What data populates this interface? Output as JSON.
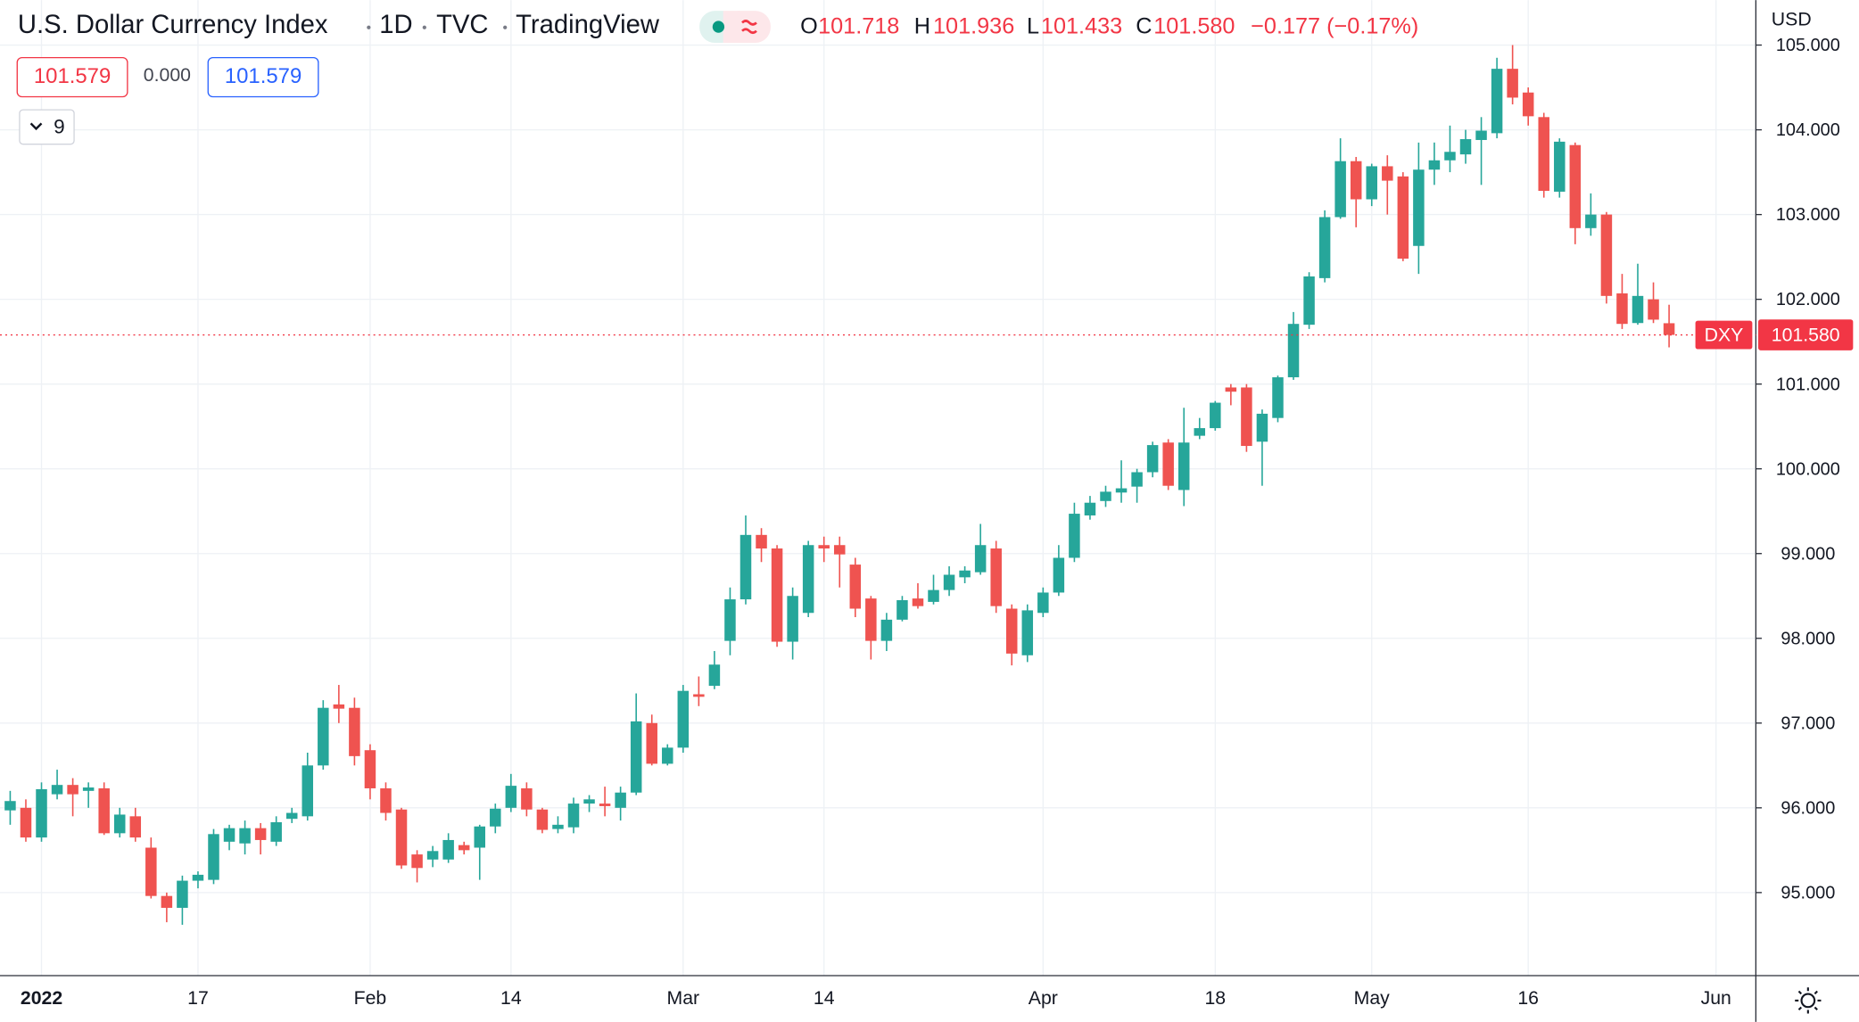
{
  "header": {
    "title": "U.S. Dollar Currency Index",
    "interval": "1D",
    "exchange": "TVC",
    "source": "TradingView",
    "ohlc": [
      {
        "key": "O",
        "value": "101.718"
      },
      {
        "key": "H",
        "value": "101.936"
      },
      {
        "key": "L",
        "value": "101.433"
      },
      {
        "key": "C",
        "value": "101.580"
      }
    ],
    "change": "−0.177 (−0.17%)",
    "indicator_values": [
      "101.579",
      "0.000",
      "101.579"
    ],
    "collapse_count": "9",
    "currency": "USD"
  },
  "chart_data": {
    "type": "candlestick",
    "symbol": "DXY",
    "up_color": "#26a69a",
    "down_color": "#ef5350",
    "grid": true,
    "last_price": 101.58,
    "last_price_label": "101.580",
    "ylim": [
      94.02,
      105.53
    ],
    "yticks": [
      {
        "value": 95,
        "label": "95.000"
      },
      {
        "value": 96,
        "label": "96.000"
      },
      {
        "value": 97,
        "label": "97.000"
      },
      {
        "value": 98,
        "label": "98.000"
      },
      {
        "value": 99,
        "label": "99.000"
      },
      {
        "value": 100,
        "label": "100.000"
      },
      {
        "value": 101,
        "label": "101.000"
      },
      {
        "value": 102,
        "label": "102.000"
      },
      {
        "value": 103,
        "label": "103.000"
      },
      {
        "value": 104,
        "label": "104.000"
      },
      {
        "value": 105,
        "label": "105.000"
      }
    ],
    "categories": [
      null,
      null,
      "2022",
      null,
      null,
      null,
      null,
      null,
      null,
      null,
      null,
      null,
      "17",
      null,
      null,
      null,
      null,
      null,
      null,
      null,
      null,
      null,
      null,
      "Feb",
      null,
      null,
      null,
      null,
      null,
      null,
      null,
      null,
      "14",
      null,
      null,
      null,
      null,
      null,
      null,
      null,
      null,
      null,
      null,
      "Mar",
      null,
      null,
      null,
      null,
      null,
      null,
      null,
      null,
      "14",
      null,
      null,
      null,
      null,
      null,
      null,
      null,
      null,
      null,
      null,
      null,
      null,
      null,
      "Apr",
      null,
      null,
      null,
      null,
      null,
      null,
      null,
      null,
      null,
      null,
      "18",
      null,
      null,
      null,
      null,
      null,
      null,
      null,
      null,
      null,
      "May",
      null,
      null,
      null,
      null,
      null,
      null,
      null,
      null,
      null,
      "16",
      null,
      null,
      null,
      null,
      null,
      null,
      null,
      null,
      null,
      null,
      null,
      "Jun"
    ],
    "open": [
      95.97,
      96.0,
      95.65,
      96.16,
      96.27,
      96.2,
      96.23,
      95.7,
      95.9,
      95.53,
      94.96,
      94.82,
      95.14,
      95.15,
      95.6,
      95.58,
      95.76,
      95.6,
      95.87,
      95.9,
      96.5,
      97.22,
      97.18,
      96.68,
      96.23,
      95.98,
      95.45,
      95.39,
      95.39,
      95.56,
      95.53,
      95.78,
      96.0,
      96.23,
      95.98,
      95.75,
      95.77,
      96.05,
      96.05,
      96.0,
      96.18,
      97.0,
      96.52,
      96.71,
      97.34,
      97.44,
      97.97,
      98.46,
      99.22,
      99.06,
      97.96,
      98.3,
      99.1,
      99.1,
      98.87,
      98.47,
      97.97,
      98.22,
      98.47,
      98.43,
      98.57,
      98.72,
      98.78,
      99.06,
      98.35,
      97.8,
      98.3,
      98.54,
      98.95,
      99.45,
      99.62,
      99.72,
      99.79,
      99.96,
      100.31,
      99.75,
      100.39,
      100.48,
      100.96,
      100.96,
      100.32,
      100.6,
      101.08,
      101.7,
      102.25,
      102.97,
      103.63,
      103.18,
      103.57,
      103.45,
      102.63,
      103.53,
      103.64,
      103.71,
      103.88,
      103.96,
      104.72,
      104.44,
      104.15,
      103.27,
      103.82,
      102.84,
      103.0,
      102.07,
      101.72,
      102.0,
      101.718,
      null,
      null,
      null
    ],
    "high": [
      96.2,
      96.1,
      96.3,
      96.45,
      96.35,
      96.3,
      96.3,
      96.0,
      96.0,
      95.65,
      95.0,
      95.2,
      95.25,
      95.75,
      95.8,
      95.85,
      95.82,
      95.9,
      96.0,
      96.65,
      97.27,
      97.45,
      97.3,
      96.75,
      96.3,
      96.0,
      95.5,
      95.55,
      95.7,
      95.6,
      95.8,
      96.05,
      96.4,
      96.3,
      96.0,
      95.9,
      96.12,
      96.15,
      96.25,
      96.25,
      97.35,
      97.1,
      96.75,
      97.45,
      97.55,
      97.85,
      98.6,
      99.45,
      99.3,
      99.1,
      98.6,
      99.15,
      99.2,
      99.2,
      98.95,
      98.5,
      98.3,
      98.5,
      98.65,
      98.75,
      98.85,
      98.85,
      99.35,
      99.15,
      98.4,
      98.4,
      98.6,
      99.1,
      99.6,
      99.68,
      99.8,
      100.1,
      100.0,
      100.32,
      100.35,
      100.72,
      100.6,
      100.8,
      101.0,
      101.0,
      100.7,
      101.1,
      101.85,
      102.32,
      103.05,
      103.9,
      103.68,
      103.6,
      103.7,
      103.5,
      103.85,
      103.85,
      104.05,
      104.0,
      104.15,
      104.85,
      105.0,
      104.5,
      104.2,
      103.9,
      103.85,
      103.25,
      103.03,
      102.3,
      102.42,
      102.2,
      101.936,
      null,
      null,
      null
    ],
    "low": [
      95.8,
      95.6,
      95.6,
      96.1,
      95.9,
      96.0,
      95.68,
      95.65,
      95.6,
      94.93,
      94.65,
      94.62,
      95.05,
      95.1,
      95.5,
      95.45,
      95.45,
      95.55,
      95.82,
      95.85,
      96.45,
      97.0,
      96.5,
      96.1,
      95.85,
      95.28,
      95.12,
      95.3,
      95.35,
      95.45,
      95.15,
      95.7,
      95.95,
      95.9,
      95.7,
      95.7,
      95.7,
      95.95,
      95.9,
      95.85,
      96.15,
      96.5,
      96.5,
      96.65,
      97.2,
      97.4,
      97.8,
      98.4,
      98.9,
      97.9,
      97.75,
      98.25,
      98.9,
      98.6,
      98.25,
      97.75,
      97.85,
      98.2,
      98.35,
      98.4,
      98.5,
      98.65,
      98.75,
      98.3,
      97.68,
      97.72,
      98.25,
      98.5,
      98.9,
      99.4,
      99.55,
      99.6,
      99.6,
      99.9,
      99.75,
      99.56,
      100.35,
      100.45,
      100.75,
      100.2,
      99.8,
      100.55,
      101.05,
      101.65,
      102.2,
      102.95,
      102.85,
      103.1,
      103.0,
      102.45,
      102.3,
      103.35,
      103.5,
      103.6,
      103.35,
      103.9,
      104.3,
      104.05,
      103.2,
      103.2,
      102.65,
      102.75,
      101.95,
      101.65,
      101.7,
      101.72,
      101.433,
      null,
      null,
      null
    ],
    "close": [
      96.08,
      95.65,
      96.22,
      96.27,
      96.16,
      96.24,
      95.7,
      95.92,
      95.65,
      94.96,
      94.82,
      95.14,
      95.21,
      95.69,
      95.76,
      95.76,
      95.62,
      95.83,
      95.94,
      96.5,
      97.18,
      97.17,
      96.61,
      96.23,
      95.94,
      95.32,
      95.29,
      95.49,
      95.62,
      95.5,
      95.78,
      95.99,
      96.26,
      95.98,
      95.74,
      95.8,
      96.05,
      96.1,
      96.02,
      96.18,
      97.02,
      96.52,
      96.71,
      97.38,
      97.31,
      97.69,
      98.46,
      99.22,
      99.06,
      97.96,
      98.5,
      99.1,
      99.06,
      98.99,
      98.35,
      97.97,
      98.22,
      98.45,
      98.38,
      98.57,
      98.75,
      98.8,
      99.1,
      98.38,
      97.82,
      98.33,
      98.54,
      98.95,
      99.47,
      99.6,
      99.73,
      99.77,
      99.96,
      100.28,
      99.8,
      100.31,
      100.48,
      100.78,
      100.91,
      100.27,
      100.65,
      101.08,
      101.71,
      102.27,
      102.97,
      103.63,
      103.18,
      103.57,
      103.4,
      102.48,
      103.53,
      103.64,
      103.74,
      103.89,
      103.99,
      104.72,
      104.38,
      104.16,
      103.28,
      103.86,
      102.84,
      103.0,
      102.04,
      101.71,
      102.04,
      101.76,
      101.58,
      null,
      null,
      null
    ]
  }
}
